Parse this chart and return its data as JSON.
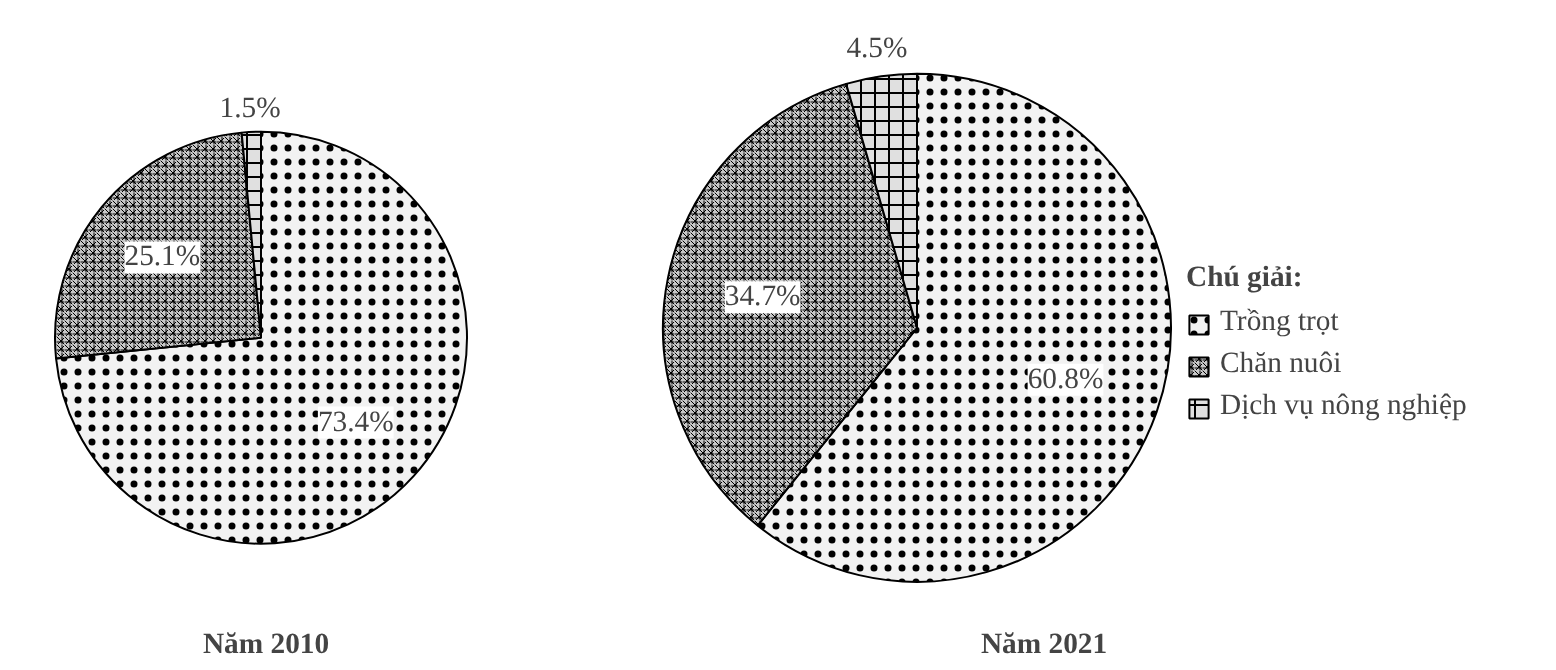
{
  "chart_data": [
    {
      "type": "pie",
      "title": "Năm 2010",
      "categories": [
        "Trồng trọt",
        "Chăn nuôi",
        "Dịch vụ nông nghiệp"
      ],
      "values": [
        73.4,
        25.1,
        1.5
      ],
      "colors": [
        "#f2f2f2",
        "#c8c8c8",
        "#e0e0e0"
      ],
      "value_labels": [
        "73.4%",
        "25.1%",
        "1.5%"
      ],
      "legend": "right",
      "legend_title": "Chú giải:"
    },
    {
      "type": "pie",
      "title": "Năm 2021",
      "categories": [
        null,
        null,
        null
      ],
      "values": [
        60.8,
        34.7,
        4.5
      ],
      "colors": [
        "#f2f2f2",
        "#c8c8c8",
        "#e0e0e0"
      ],
      "value_labels": [
        "60.8%",
        "34.7%",
        "4.5%"
      ]
    }
  ]
}
